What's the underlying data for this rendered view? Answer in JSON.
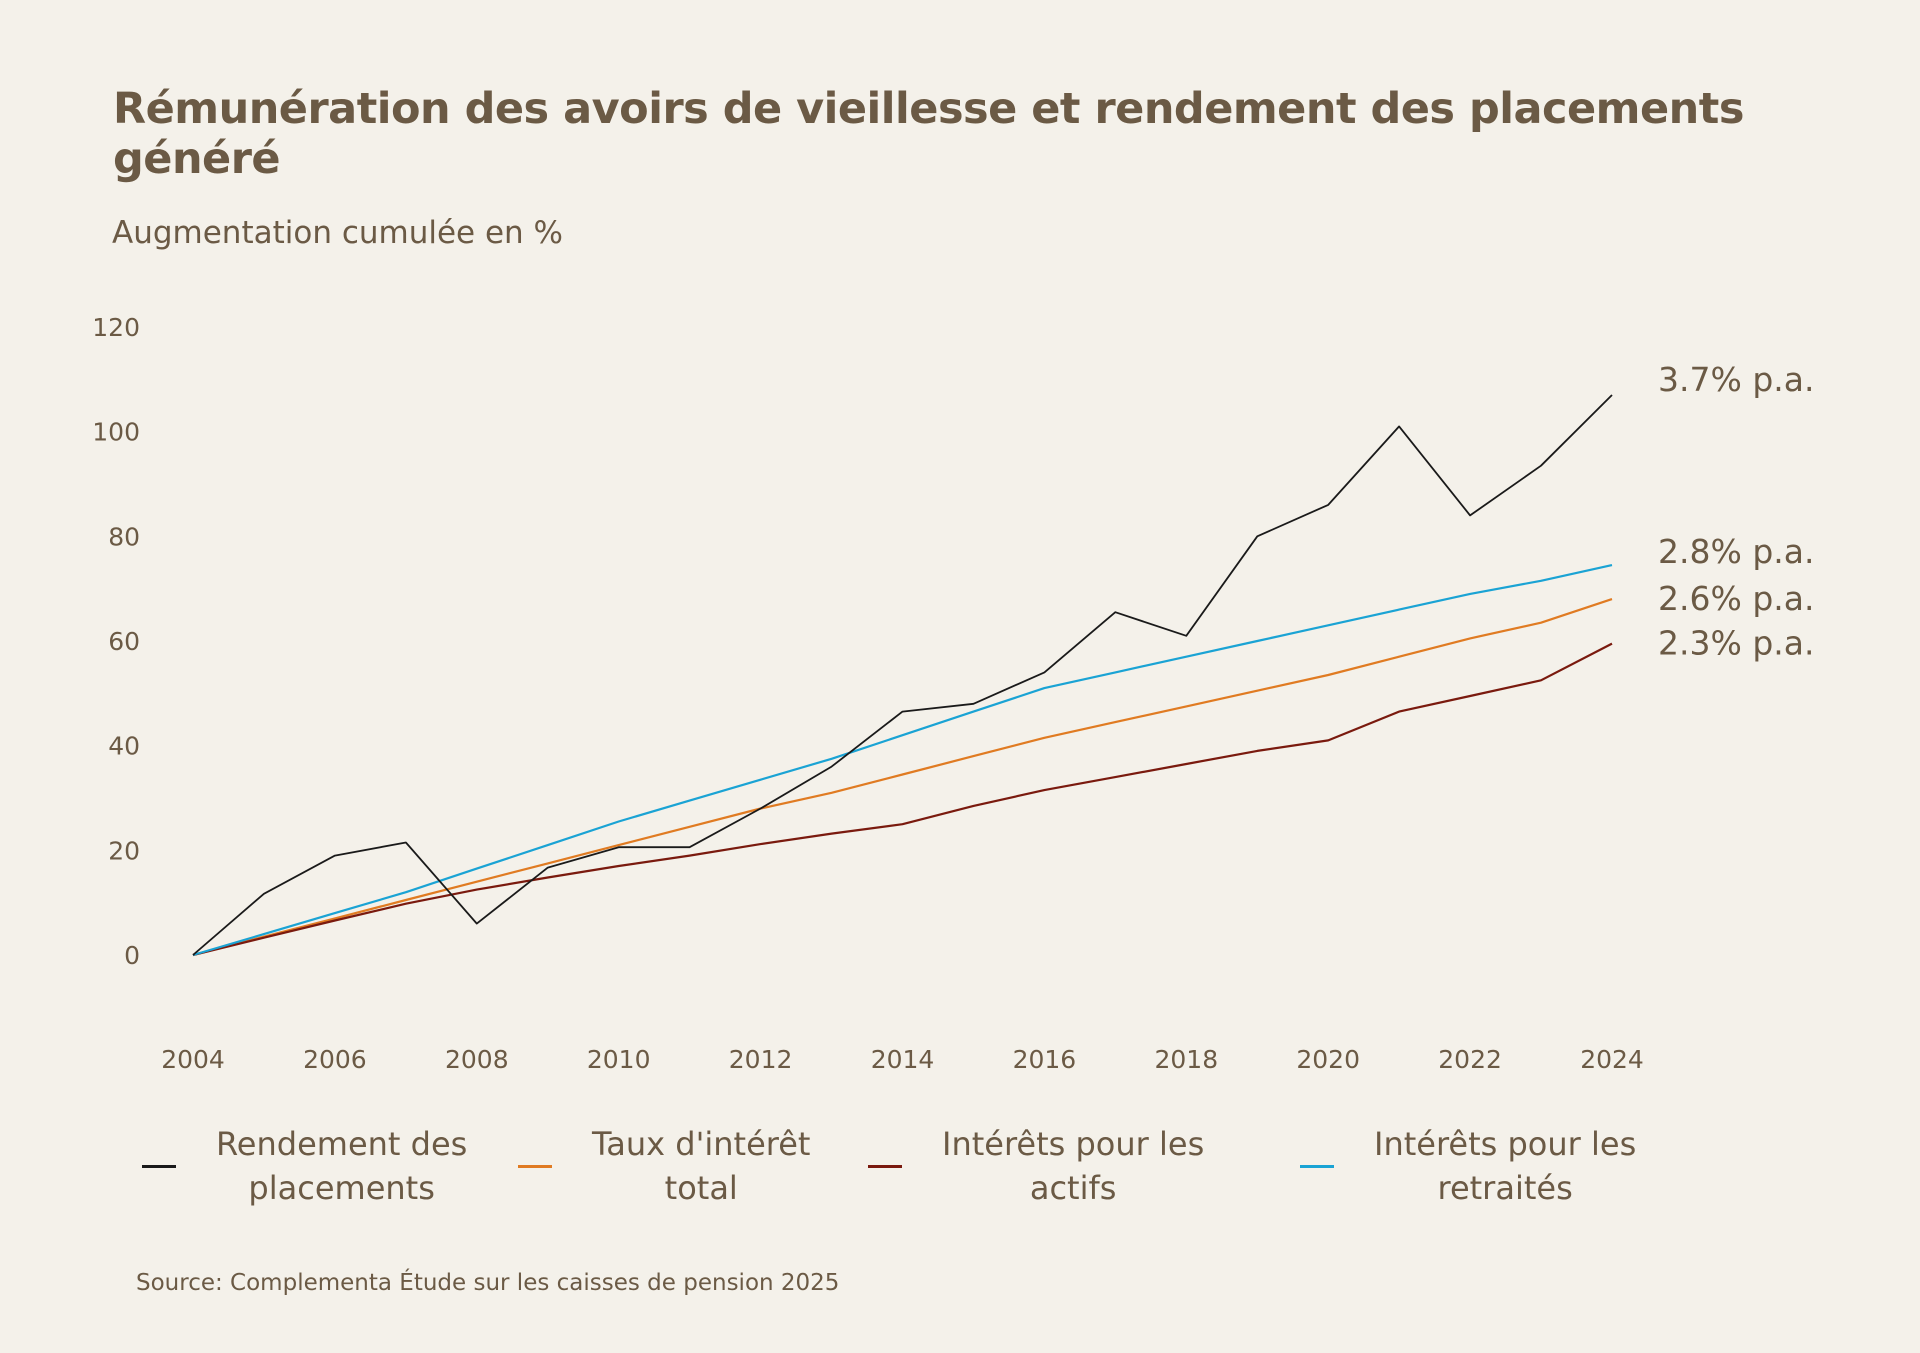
{
  "title": "Rémunération des avoirs de vieillesse et rendement des placements généré",
  "subtitle": "Augmentation cumulée en %",
  "source": "Source: Complementa Étude sur les caisses de pension 2025",
  "chart_data": {
    "type": "line",
    "title": "Rémunération des avoirs de vieillesse et rendement des placements généré",
    "ylabel": "Augmentation cumulée en %",
    "xlabel": "",
    "xlim": [
      2004,
      2024
    ],
    "ylim": [
      0,
      120
    ],
    "x_ticks": [
      "2004",
      "2006",
      "2008",
      "2010",
      "2012",
      "2014",
      "2016",
      "2018",
      "2020",
      "2022",
      "2024"
    ],
    "y_ticks": [
      "0",
      "20",
      "40",
      "60",
      "80",
      "100",
      "120"
    ],
    "grid": false,
    "legend_position": "bottom",
    "x": [
      2004,
      2005,
      2006,
      2007,
      2008,
      2009,
      2010,
      2011,
      2012,
      2013,
      2014,
      2015,
      2016,
      2017,
      2018,
      2019,
      2020,
      2021,
      2022,
      2023,
      2024
    ],
    "series": [
      {
        "name": "Rendement des placements",
        "label_lines": [
          "Rendement des",
          "placements"
        ],
        "color": "#1a1a1a",
        "end_label": "3.7% p.a.",
        "values": [
          0,
          11.7,
          19,
          21.5,
          6,
          16.7,
          20.6,
          20.6,
          28,
          36,
          46.5,
          48,
          54,
          65.5,
          61,
          80,
          86,
          101,
          84,
          93.5,
          107
        ]
      },
      {
        "name": "Taux d'intérêt total",
        "label_lines": [
          "Taux d'intérêt",
          "total"
        ],
        "color": "#e07b22",
        "end_label": "2.6% p.a.",
        "values": [
          0,
          3.5,
          7,
          10.5,
          14,
          17.5,
          21,
          24.5,
          28,
          31,
          34.5,
          38,
          41.5,
          44.5,
          47.5,
          50.5,
          53.5,
          57,
          60.5,
          63.5,
          68
        ]
      },
      {
        "name": "Intérêts pour les actifs",
        "label_lines": [
          "Intérêts pour les",
          "actifs"
        ],
        "color": "#7a1a0e",
        "end_label": "2.3% p.a.",
        "values": [
          0,
          3.3,
          6.6,
          9.8,
          12.5,
          14.8,
          17,
          19,
          21.2,
          23.2,
          25,
          28.5,
          31.5,
          34,
          36.5,
          39,
          41,
          46.5,
          49.5,
          52.5,
          59.5
        ]
      },
      {
        "name": "Intérêts pour les retraités",
        "label_lines": [
          "Intérêts pour les",
          "retraités"
        ],
        "color": "#1aa3d4",
        "end_label": "2.8% p.a.",
        "values": [
          0,
          4,
          8,
          12,
          16.5,
          21,
          25.5,
          29.5,
          33.5,
          37.5,
          42,
          46.5,
          51,
          54,
          57,
          60,
          63,
          66,
          69,
          71.5,
          74.5
        ]
      }
    ]
  }
}
